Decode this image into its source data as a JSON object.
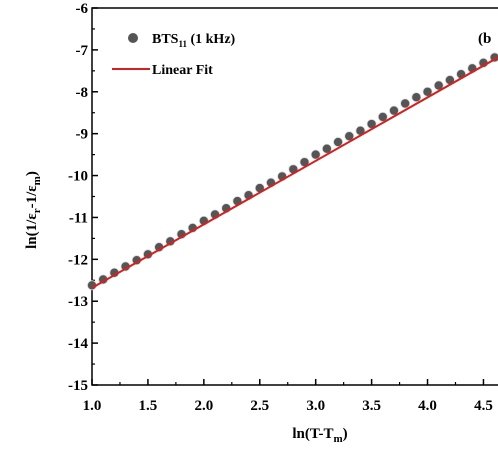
{
  "chart_data": {
    "type": "scatter",
    "panel_label": "(b",
    "xlabel": {
      "main": "ln(T-T",
      "sub": "m",
      "tail": ")"
    },
    "ylabel": {
      "p1": "ln(1/ε",
      "s1": "r",
      "p2": "-1/ε",
      "s2": "m",
      "p3": ")"
    },
    "xlim": [
      1.0,
      4.63
    ],
    "ylim": [
      -15,
      -6
    ],
    "x_ticks": [
      "1.0",
      "1.5",
      "2.0",
      "2.5",
      "3.0",
      "3.5",
      "4.0",
      "4.5"
    ],
    "y_ticks": [
      "-6",
      "-7",
      "-8",
      "-9",
      "-10",
      "-11",
      "-12",
      "-13",
      "-14",
      "-15"
    ],
    "series": [
      {
        "name": {
          "main": "BTS",
          "sub": "11",
          "tail": " (1 kHz)"
        },
        "kind": "scatter",
        "color": "#555555",
        "x": [
          1.0,
          1.1,
          1.2,
          1.3,
          1.4,
          1.5,
          1.6,
          1.7,
          1.8,
          1.9,
          2.0,
          2.1,
          2.2,
          2.3,
          2.4,
          2.5,
          2.6,
          2.7,
          2.8,
          2.9,
          3.0,
          3.1,
          3.2,
          3.3,
          3.4,
          3.5,
          3.6,
          3.7,
          3.8,
          3.9,
          4.0,
          4.1,
          4.2,
          4.3,
          4.4,
          4.5,
          4.6
        ],
        "y": [
          -12.62,
          -12.48,
          -12.32,
          -12.17,
          -12.02,
          -11.88,
          -11.71,
          -11.57,
          -11.4,
          -11.25,
          -11.08,
          -10.93,
          -10.78,
          -10.61,
          -10.47,
          -10.3,
          -10.17,
          -10.02,
          -9.85,
          -9.68,
          -9.5,
          -9.36,
          -9.2,
          -9.06,
          -8.93,
          -8.77,
          -8.6,
          -8.45,
          -8.28,
          -8.13,
          -8.0,
          -7.85,
          -7.72,
          -7.58,
          -7.44,
          -7.31,
          -7.18
        ]
      },
      {
        "name": "Linear Fit",
        "kind": "line",
        "color": "#d62020",
        "x": [
          1.0,
          4.63
        ],
        "y": [
          -12.68,
          -7.18
        ]
      }
    ],
    "legend": "top-left",
    "grid": false
  }
}
